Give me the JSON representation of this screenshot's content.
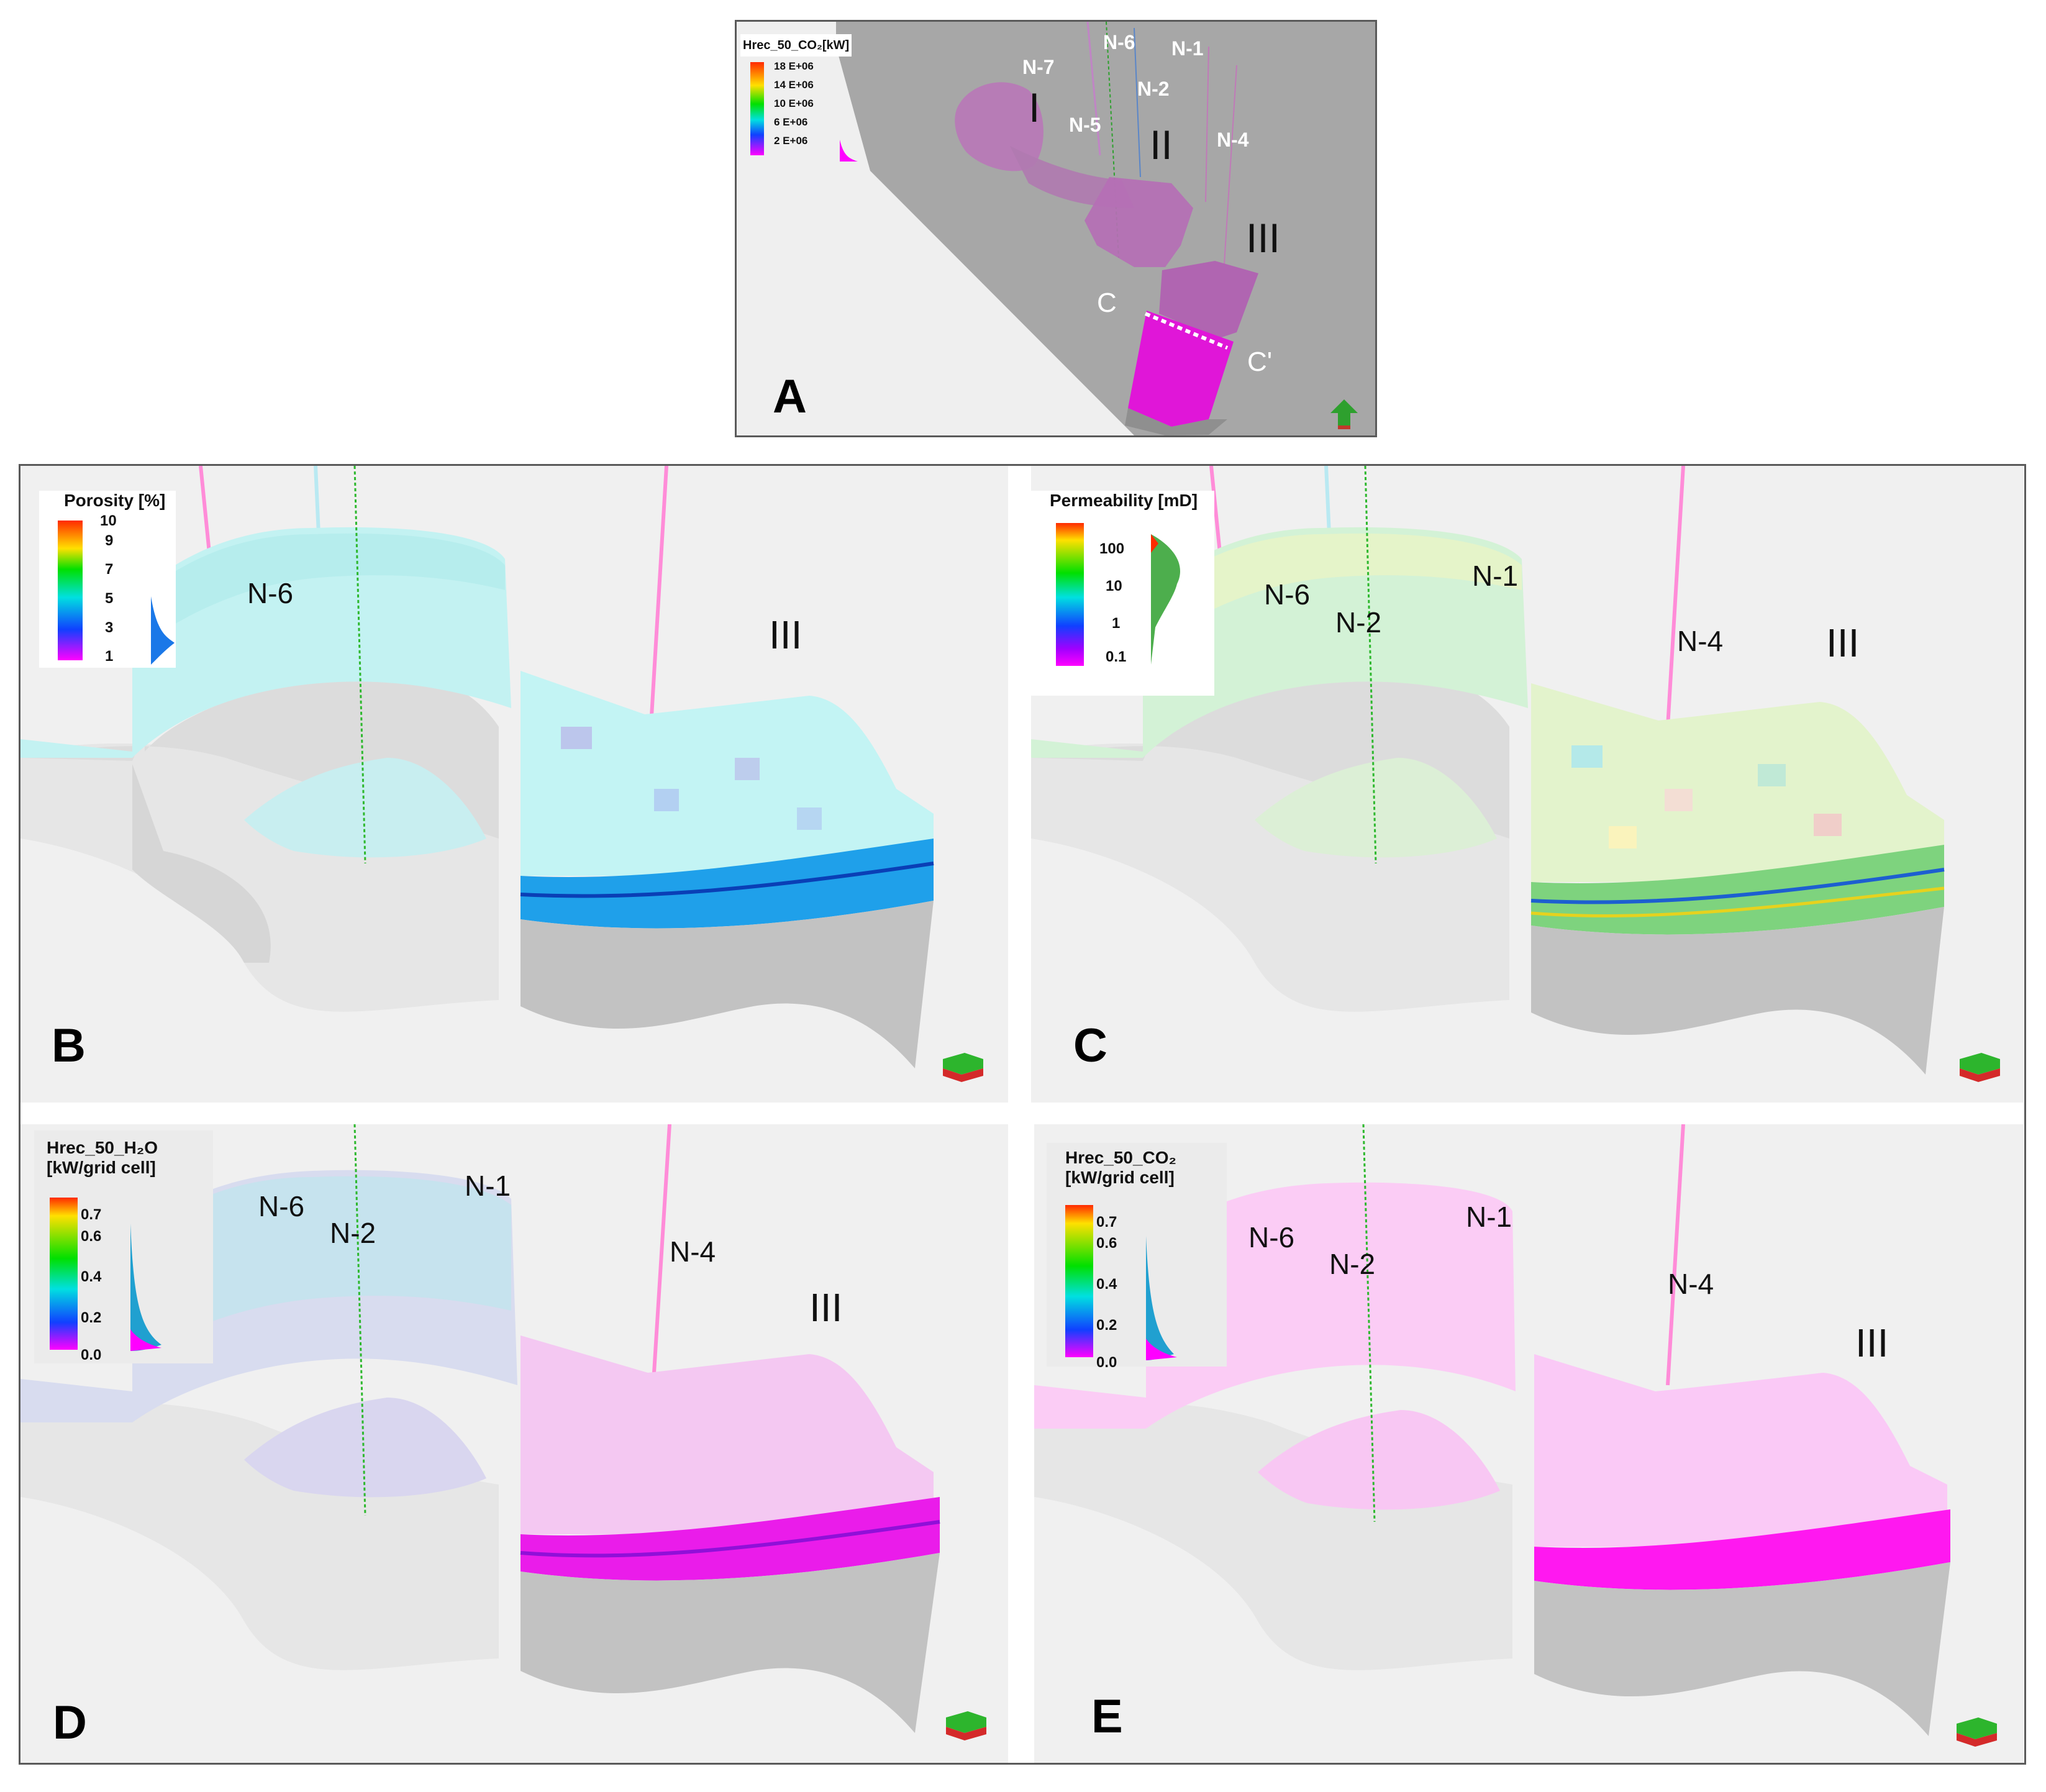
{
  "panels": {
    "A": {
      "letter": "A",
      "legend": {
        "title": "Hrec_50_CO₂[kW]",
        "ticks": [
          "18 E+06",
          "14 E+06",
          "10 E+06",
          "6 E+06",
          "2 E+06"
        ]
      },
      "wells": [
        "N-7",
        "N-6",
        "N-1",
        "N-2",
        "N-5",
        "N-4"
      ],
      "zones": [
        "I",
        "II",
        "III"
      ],
      "section_labels": [
        "C",
        "C'"
      ]
    },
    "B": {
      "letter": "B",
      "legend": {
        "title": "Porosity [%]",
        "ticks": [
          "10",
          "9",
          "7",
          "5",
          "3",
          "1"
        ]
      },
      "wells": [
        "N-6"
      ],
      "zones": [
        "III"
      ]
    },
    "C": {
      "letter": "C",
      "legend": {
        "title": "Permeability [mD]",
        "ticks": [
          "100",
          "10",
          "1",
          "0.1"
        ]
      },
      "wells": [
        "N-6",
        "N-2",
        "N-1",
        "N-4"
      ],
      "zones": [
        "III"
      ]
    },
    "D": {
      "letter": "D",
      "legend": {
        "title_line1": "Hrec_50_H₂O",
        "title_line2": "[kW/grid cell]",
        "ticks": [
          "0.7",
          "0.6",
          "0.4",
          "0.2",
          "0.0"
        ]
      },
      "wells": [
        "N-6",
        "N-2",
        "N-1",
        "N-4"
      ],
      "zones": [
        "III"
      ]
    },
    "E": {
      "letter": "E",
      "legend": {
        "title_line1": "Hrec_50_CO₂",
        "title_line2": "[kW/grid cell]",
        "ticks": [
          "0.7",
          "0.6",
          "0.4",
          "0.2",
          "0.0"
        ]
      },
      "wells": [
        "N-6",
        "N-2",
        "N-1",
        "N-4"
      ],
      "zones": [
        "III"
      ]
    }
  },
  "colors": {
    "rainbow": [
      "#ff2a00",
      "#ffe000",
      "#00e000",
      "#00e0e0",
      "#1040ff",
      "#ff00ff"
    ],
    "reservoir_cyan": "#bff2f2",
    "heat_pink": "#f7c6f5",
    "magenta": "#ff00ee",
    "basement_grey": "#bdbdbd"
  }
}
